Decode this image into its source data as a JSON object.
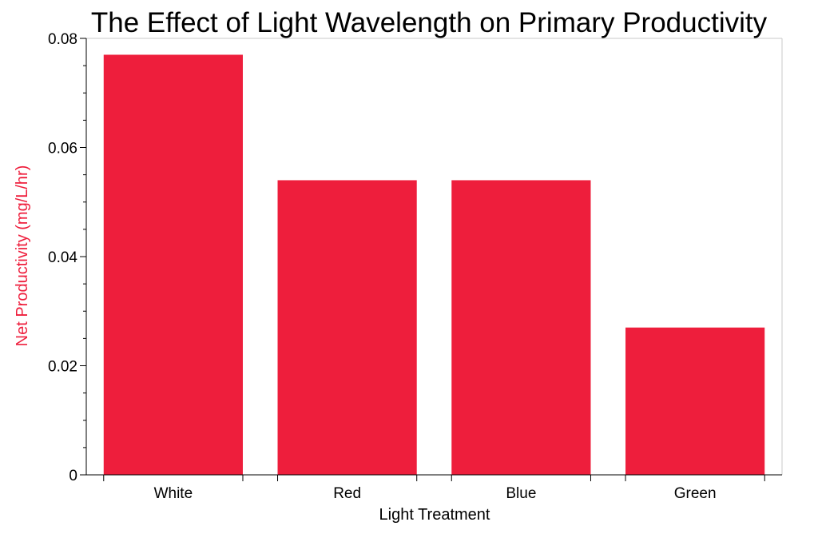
{
  "chart_data": {
    "type": "bar",
    "title": "The Effect of Light Wavelength on Primary Productivity",
    "xlabel": "Light Treatment",
    "ylabel": "Net Productivity (mg/L/hr)",
    "categories": [
      "White",
      "Red",
      "Blue",
      "Green"
    ],
    "values": [
      0.077,
      0.054,
      0.054,
      0.027
    ],
    "ylim": [
      0,
      0.08
    ],
    "y_ticks": [
      0,
      0.02,
      0.04,
      0.06,
      0.08
    ],
    "y_tick_labels": [
      "0",
      "0.02",
      "0.04",
      "0.06",
      "0.08"
    ],
    "grid": false,
    "legend": "none",
    "colors": {
      "bar": "#ee1e3c",
      "ylabel": "#ee1e3c",
      "axis": "#000000",
      "frame": "#c8c8c8"
    }
  }
}
